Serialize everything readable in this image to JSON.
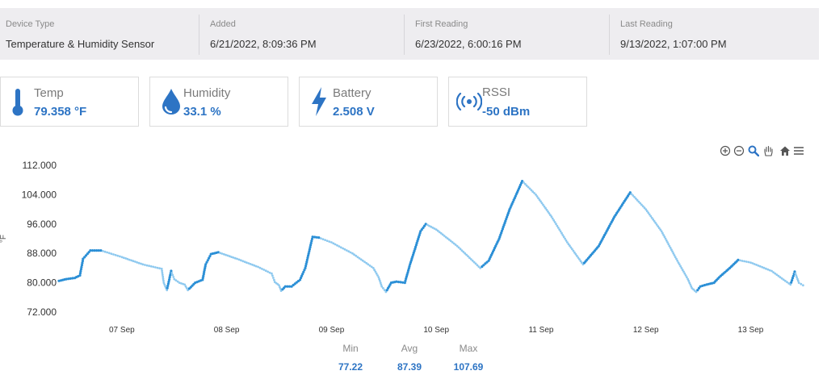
{
  "device_info": {
    "device_type": {
      "label": "Device Type",
      "value": "Temperature & Humidity Sensor"
    },
    "added": {
      "label": "Added",
      "value": "6/21/2022, 8:09:36 PM"
    },
    "first_reading": {
      "label": "First Reading",
      "value": "6/23/2022, 6:00:16 PM"
    },
    "last_reading": {
      "label": "Last Reading",
      "value": "9/13/2022, 1:07:00 PM"
    }
  },
  "metrics": {
    "temp": {
      "label": "Temp",
      "value": "79.358 °F",
      "icon": "thermometer-icon"
    },
    "humidity": {
      "label": "Humidity",
      "value": "33.1 %",
      "icon": "water-drop-icon"
    },
    "battery": {
      "label": "Battery",
      "value": "2.508 V",
      "icon": "lightning-bolt-icon"
    },
    "rssi": {
      "label": "RSSI",
      "value": "-50 dBm",
      "icon": "signal-broadcast-icon"
    }
  },
  "colors": {
    "accent": "#2d74c4",
    "series": "#2b8fd6",
    "series_light": "#8ec9ef"
  },
  "toolbar": [
    "zoom-in-icon",
    "zoom-out-icon",
    "zoom-select-icon",
    "pan-icon",
    "home-icon",
    "menu-icon"
  ],
  "stats": {
    "min": {
      "label": "Min",
      "value": "77.22"
    },
    "avg": {
      "label": "Avg",
      "value": "87.39"
    },
    "max": {
      "label": "Max",
      "value": "107.69"
    }
  },
  "chart_data": {
    "type": "scatter",
    "ylabel": "°F",
    "ylim": [
      72,
      112
    ],
    "yticks": [
      "112.000",
      "104.000",
      "96.000",
      "88.000",
      "80.000",
      "72.000"
    ],
    "xticks": [
      "07 Sep",
      "08 Sep",
      "09 Sep",
      "10 Sep",
      "11 Sep",
      "12 Sep",
      "13 Sep"
    ],
    "xrange": [
      6.4,
      13.52
    ],
    "grid": false,
    "series": [
      {
        "points": [
          [
            6.4,
            80.5
          ],
          [
            6.47,
            81
          ],
          [
            6.55,
            81.3
          ],
          [
            6.6,
            82
          ],
          [
            6.63,
            86.5
          ],
          [
            6.7,
            88.8
          ],
          [
            6.8,
            88.8
          ],
          [
            7.0,
            87
          ],
          [
            7.2,
            85
          ],
          [
            7.38,
            83.8
          ],
          [
            7.4,
            80
          ],
          [
            7.43,
            78
          ],
          [
            7.47,
            83.2
          ],
          [
            7.5,
            81
          ],
          [
            7.55,
            80
          ],
          [
            7.6,
            79.5
          ],
          [
            7.63,
            78
          ],
          [
            7.7,
            80
          ],
          [
            7.77,
            80.8
          ],
          [
            7.8,
            85
          ],
          [
            7.85,
            87.8
          ],
          [
            7.92,
            88.3
          ],
          [
            8.1,
            86.5
          ],
          [
            8.3,
            84.3
          ],
          [
            8.43,
            82.5
          ],
          [
            8.46,
            80.2
          ],
          [
            8.5,
            79.3
          ],
          [
            8.52,
            77.8
          ],
          [
            8.56,
            79
          ],
          [
            8.62,
            79
          ],
          [
            8.7,
            80.8
          ],
          [
            8.75,
            84
          ],
          [
            8.82,
            92.5
          ],
          [
            8.88,
            92.3
          ],
          [
            9.0,
            91
          ],
          [
            9.2,
            88
          ],
          [
            9.4,
            84
          ],
          [
            9.45,
            81.5
          ],
          [
            9.48,
            79
          ],
          [
            9.52,
            77.5
          ],
          [
            9.57,
            80
          ],
          [
            9.62,
            80.3
          ],
          [
            9.7,
            80
          ],
          [
            9.75,
            85
          ],
          [
            9.85,
            94
          ],
          [
            9.9,
            96
          ],
          [
            10.0,
            94.5
          ],
          [
            10.2,
            90
          ],
          [
            10.42,
            84
          ],
          [
            10.5,
            86
          ],
          [
            10.6,
            92
          ],
          [
            10.7,
            100
          ],
          [
            10.82,
            107.7
          ],
          [
            10.95,
            104
          ],
          [
            11.1,
            98
          ],
          [
            11.25,
            91
          ],
          [
            11.4,
            85
          ],
          [
            11.55,
            90
          ],
          [
            11.7,
            98
          ],
          [
            11.85,
            104.6
          ],
          [
            12.0,
            100
          ],
          [
            12.15,
            94
          ],
          [
            12.3,
            86
          ],
          [
            12.4,
            81
          ],
          [
            12.44,
            78.5
          ],
          [
            12.48,
            77.5
          ],
          [
            12.52,
            79
          ],
          [
            12.58,
            79.5
          ],
          [
            12.65,
            80
          ],
          [
            12.7,
            81.5
          ],
          [
            12.8,
            84
          ],
          [
            12.88,
            86.2
          ],
          [
            13.0,
            85.5
          ],
          [
            13.2,
            83.2
          ],
          [
            13.33,
            80.5
          ],
          [
            13.38,
            79.5
          ],
          [
            13.42,
            83
          ],
          [
            13.46,
            80
          ],
          [
            13.5,
            79.3
          ]
        ]
      }
    ]
  }
}
